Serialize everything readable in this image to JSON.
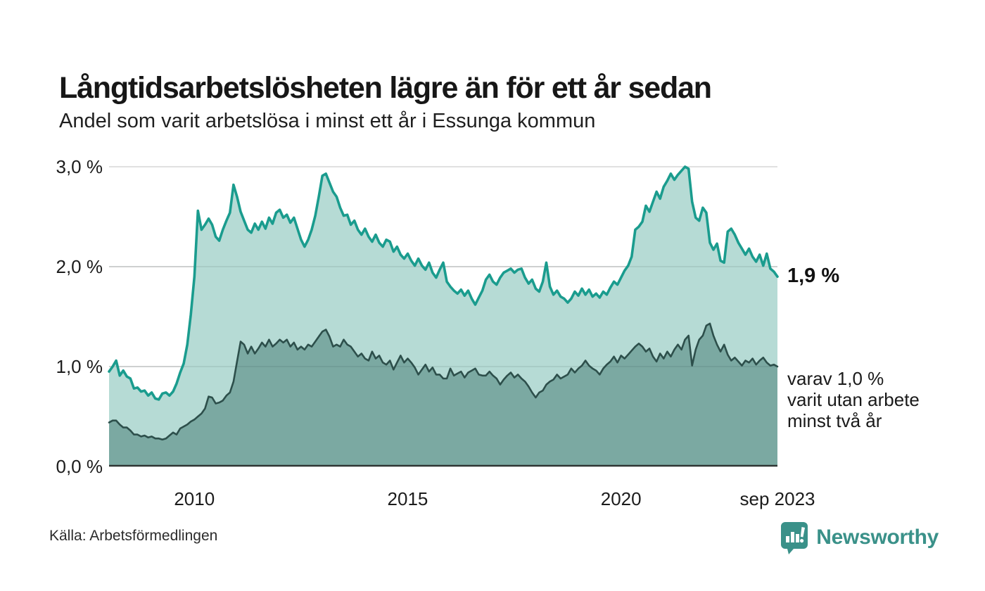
{
  "header": {
    "title": "Långtidsarbetslösheten lägre än för ett år sedan",
    "subtitle": "Andel som varit arbetslösa i minst ett år i Essunga kommun"
  },
  "chart_data": {
    "type": "area",
    "title": "Långtidsarbetslösheten lägre än för ett år sedan",
    "subtitle": "Andel som varit arbetslösa i minst ett år i Essunga kommun",
    "unit": "%",
    "frequency": "monthly",
    "x_start": "2008-01",
    "x_end": "2023-09",
    "ylim": [
      0,
      3
    ],
    "grid": "horizontal",
    "y_ticks": [
      {
        "label": "3,0 %",
        "value": 3.0
      },
      {
        "label": "2,0 %",
        "value": 2.0
      },
      {
        "label": "1,0 %",
        "value": 1.0
      },
      {
        "label": "0,0 %",
        "value": 0.0
      }
    ],
    "x_ticks": [
      {
        "label": "2010",
        "month_index": 24
      },
      {
        "label": "2015",
        "month_index": 84
      },
      {
        "label": "2020",
        "month_index": 144
      },
      {
        "label": "sep 2023",
        "month_index": 188
      }
    ],
    "series": [
      {
        "name": "Andel arbetslösa minst ett år",
        "color": "#1a9c8e",
        "fill": "#b6dbd5",
        "line_width": 3.6,
        "values": [
          0.95,
          1.0,
          1.06,
          0.91,
          0.96,
          0.9,
          0.88,
          0.78,
          0.79,
          0.75,
          0.76,
          0.71,
          0.74,
          0.68,
          0.67,
          0.73,
          0.74,
          0.71,
          0.75,
          0.83,
          0.94,
          1.03,
          1.22,
          1.52,
          1.9,
          2.56,
          2.37,
          2.42,
          2.48,
          2.42,
          2.3,
          2.26,
          2.37,
          2.46,
          2.54,
          2.82,
          2.7,
          2.55,
          2.46,
          2.37,
          2.34,
          2.43,
          2.37,
          2.45,
          2.38,
          2.49,
          2.43,
          2.54,
          2.57,
          2.49,
          2.52,
          2.44,
          2.49,
          2.38,
          2.27,
          2.2,
          2.27,
          2.37,
          2.51,
          2.7,
          2.91,
          2.93,
          2.84,
          2.75,
          2.7,
          2.59,
          2.51,
          2.52,
          2.42,
          2.46,
          2.37,
          2.32,
          2.38,
          2.3,
          2.25,
          2.32,
          2.24,
          2.2,
          2.27,
          2.25,
          2.15,
          2.2,
          2.12,
          2.08,
          2.13,
          2.06,
          2.01,
          2.08,
          2.01,
          1.97,
          2.04,
          1.94,
          1.89,
          1.97,
          2.04,
          1.85,
          1.8,
          1.76,
          1.73,
          1.77,
          1.71,
          1.76,
          1.68,
          1.62,
          1.69,
          1.76,
          1.87,
          1.92,
          1.85,
          1.82,
          1.89,
          1.94,
          1.96,
          1.98,
          1.94,
          1.97,
          1.98,
          1.89,
          1.83,
          1.87,
          1.78,
          1.75,
          1.85,
          2.04,
          1.8,
          1.72,
          1.76,
          1.7,
          1.68,
          1.64,
          1.68,
          1.75,
          1.71,
          1.78,
          1.72,
          1.77,
          1.7,
          1.73,
          1.69,
          1.75,
          1.72,
          1.79,
          1.85,
          1.82,
          1.89,
          1.96,
          2.01,
          2.1,
          2.37,
          2.4,
          2.45,
          2.61,
          2.55,
          2.65,
          2.75,
          2.68,
          2.8,
          2.86,
          2.93,
          2.87,
          2.92,
          2.96,
          3.0,
          2.98,
          2.65,
          2.49,
          2.46,
          2.59,
          2.54,
          2.24,
          2.17,
          2.23,
          2.06,
          2.04,
          2.35,
          2.38,
          2.32,
          2.24,
          2.18,
          2.12,
          2.18,
          2.1,
          2.05,
          2.12,
          2.01,
          2.13,
          1.98,
          1.95,
          1.9
        ]
      },
      {
        "name": "Andel arbetslösa minst två år",
        "color": "#2d4f4b",
        "fill": "#7ba9a2",
        "line_width": 2.6,
        "values": [
          0.44,
          0.46,
          0.46,
          0.42,
          0.39,
          0.39,
          0.36,
          0.32,
          0.32,
          0.3,
          0.31,
          0.29,
          0.3,
          0.28,
          0.28,
          0.27,
          0.28,
          0.31,
          0.34,
          0.32,
          0.38,
          0.4,
          0.42,
          0.45,
          0.47,
          0.5,
          0.53,
          0.58,
          0.7,
          0.69,
          0.63,
          0.64,
          0.66,
          0.71,
          0.74,
          0.85,
          1.05,
          1.25,
          1.22,
          1.13,
          1.2,
          1.13,
          1.18,
          1.24,
          1.2,
          1.27,
          1.2,
          1.23,
          1.27,
          1.24,
          1.27,
          1.2,
          1.24,
          1.17,
          1.2,
          1.17,
          1.22,
          1.2,
          1.25,
          1.3,
          1.35,
          1.37,
          1.3,
          1.2,
          1.22,
          1.2,
          1.27,
          1.22,
          1.2,
          1.15,
          1.1,
          1.13,
          1.08,
          1.06,
          1.15,
          1.08,
          1.11,
          1.04,
          1.02,
          1.06,
          0.97,
          1.04,
          1.11,
          1.04,
          1.08,
          1.04,
          0.99,
          0.92,
          0.97,
          1.02,
          0.95,
          0.99,
          0.92,
          0.92,
          0.88,
          0.88,
          0.98,
          0.91,
          0.93,
          0.95,
          0.89,
          0.94,
          0.96,
          0.98,
          0.92,
          0.91,
          0.91,
          0.95,
          0.91,
          0.88,
          0.82,
          0.87,
          0.91,
          0.94,
          0.89,
          0.92,
          0.88,
          0.85,
          0.8,
          0.74,
          0.69,
          0.74,
          0.76,
          0.82,
          0.85,
          0.87,
          0.92,
          0.88,
          0.9,
          0.92,
          0.98,
          0.94,
          0.98,
          1.01,
          1.06,
          1.01,
          0.98,
          0.96,
          0.92,
          0.98,
          1.02,
          1.05,
          1.1,
          1.04,
          1.11,
          1.08,
          1.12,
          1.16,
          1.2,
          1.23,
          1.2,
          1.15,
          1.18,
          1.1,
          1.05,
          1.13,
          1.08,
          1.15,
          1.1,
          1.17,
          1.22,
          1.17,
          1.27,
          1.31,
          1.01,
          1.17,
          1.27,
          1.31,
          1.41,
          1.43,
          1.31,
          1.22,
          1.15,
          1.22,
          1.12,
          1.06,
          1.09,
          1.05,
          1.01,
          1.06,
          1.04,
          1.08,
          1.02,
          1.06,
          1.09,
          1.04,
          1.01,
          1.02,
          1.0
        ]
      }
    ],
    "annotations": [
      {
        "text": "1,9 %",
        "at_value": 1.9,
        "bold": true
      },
      {
        "text": "varav 1,0 %\nvarit utan arbete\nminst två år",
        "at_value": 1.0,
        "bold": false
      }
    ],
    "legend_position": "none"
  },
  "footer": {
    "source": "Källa: Arbetsförmedlingen",
    "logo_text": "Newsworthy"
  },
  "colors": {
    "background": "#ffffff",
    "text": "#1a1a1a",
    "teal_line": "#1a9c8e",
    "teal_fill": "#b6dbd5",
    "dark_line": "#2d4f4b",
    "dark_fill": "#7ba9a2",
    "gridline": "#e0e0e0",
    "axis": "#2f3533",
    "logo_teal": "#3a9189"
  }
}
